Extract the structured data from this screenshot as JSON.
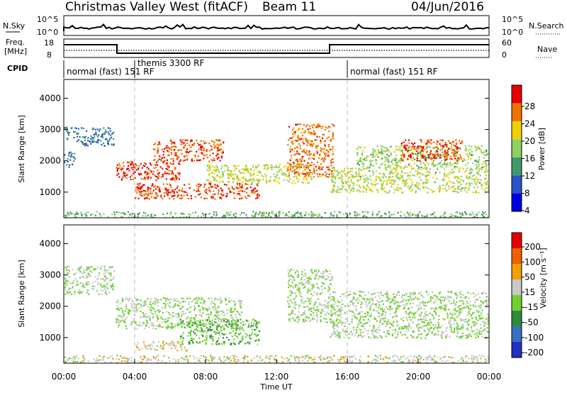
{
  "header": {
    "station": "Christmas Valley West (fitACF)",
    "beam": "Beam 11",
    "date": "04/Jun/2016"
  },
  "sky_panel": {
    "left_label": "N.Sky",
    "left_ticks": [
      "10^5",
      "10^0"
    ],
    "right_label": "N.Search",
    "right_ticks": [
      "10^5",
      "10^0"
    ]
  },
  "freq_panel": {
    "left_label_1": "Freq.",
    "left_label_2": "[MHz]",
    "left_ticks": [
      "18",
      "8"
    ],
    "right_label": "Nave",
    "right_ticks": [
      "60",
      "0"
    ]
  },
  "cpid": {
    "label": "CPID",
    "segments": [
      {
        "text": "normal (fast) 151 RF",
        "start_hour": 0
      },
      {
        "text": "themis 3300 RF",
        "start_hour": 4
      },
      {
        "text": "normal (fast) 151 RF",
        "start_hour": 16
      }
    ]
  },
  "power_panel": {
    "ylabel": "Slant Range [km]",
    "yticks": [
      "4000",
      "3000",
      "2000",
      "1000"
    ],
    "colorbar_label": "Power [dB]",
    "colorbar_ticks": [
      "28",
      "24",
      "20",
      "16",
      "12",
      "8",
      "4"
    ],
    "colors": [
      "#0000e0",
      "#2a55c8",
      "#3f9a6a",
      "#8fd060",
      "#f0d000",
      "#f07000",
      "#e80000"
    ]
  },
  "velocity_panel": {
    "ylabel": "Slant Range [km]",
    "yticks": [
      "4000",
      "3000",
      "2000",
      "1000"
    ],
    "colorbar_label": "Velocity [m s⁻¹]",
    "colorbar_ticks": [
      "200",
      "100",
      "50",
      "15",
      "-15",
      "-50",
      "-100",
      "-200"
    ],
    "colors": [
      "#2030c0",
      "#3a70c0",
      "#2f8a3a",
      "#70d030",
      "#c8c8c8",
      "#f0a000",
      "#f06000",
      "#e80000"
    ]
  },
  "xaxis": {
    "label": "Time UT",
    "ticks": [
      "00:00",
      "04:00",
      "08:00",
      "12:00",
      "16:00",
      "20:00",
      "00:00"
    ]
  },
  "chart_data": [
    {
      "type": "heatmap",
      "title": "Power [dB]",
      "xlabel": "",
      "ylabel": "Slant Range [km]",
      "xlim": [
        0,
        24
      ],
      "ylim": [
        180,
        4600
      ],
      "clim": [
        2,
        30
      ],
      "x_unit": "hours UT",
      "echo_regions": [
        {
          "t0": 0.0,
          "t1": 0.6,
          "r0": 1800,
          "r1": 2300,
          "value": 10
        },
        {
          "t0": 0.0,
          "t1": 0.7,
          "r0": 2700,
          "r1": 3100,
          "value": 12
        },
        {
          "t0": 0.7,
          "t1": 2.8,
          "r0": 2500,
          "r1": 3100,
          "value": 9
        },
        {
          "t0": 2.9,
          "t1": 6.5,
          "r0": 1400,
          "r1": 2000,
          "value": 27
        },
        {
          "t0": 4.0,
          "t1": 11.0,
          "r0": 800,
          "r1": 1300,
          "value": 26
        },
        {
          "t0": 5.0,
          "t1": 9.0,
          "r0": 2000,
          "r1": 2700,
          "value": 25
        },
        {
          "t0": 8.0,
          "t1": 14.0,
          "r0": 1300,
          "r1": 1900,
          "value": 18
        },
        {
          "t0": 12.6,
          "t1": 15.2,
          "r0": 1500,
          "r1": 3200,
          "value": 24
        },
        {
          "t0": 15.0,
          "t1": 24.0,
          "r0": 1000,
          "r1": 1800,
          "value": 17
        },
        {
          "t0": 16.5,
          "t1": 24.0,
          "r0": 1800,
          "r1": 2500,
          "value": 16
        },
        {
          "t0": 19.0,
          "t1": 22.5,
          "r0": 2000,
          "r1": 2700,
          "value": 26
        },
        {
          "t0": 0.0,
          "t1": 24.0,
          "r0": 200,
          "r1": 400,
          "value": 14
        }
      ]
    },
    {
      "type": "heatmap",
      "title": "Velocity [m s⁻¹]",
      "xlabel": "Time UT",
      "ylabel": "Slant Range [km]",
      "xlim": [
        0,
        24
      ],
      "ylim": [
        180,
        4600
      ],
      "clim": [
        -200,
        200
      ],
      "x_unit": "hours UT",
      "echo_regions": [
        {
          "t0": 0.0,
          "t1": 2.8,
          "r0": 2400,
          "r1": 3300,
          "value": 0
        },
        {
          "t0": 2.9,
          "t1": 10.0,
          "r0": 1300,
          "r1": 2300,
          "value": 0
        },
        {
          "t0": 4.0,
          "t1": 7.0,
          "r0": 600,
          "r1": 900,
          "value": 40
        },
        {
          "t0": 6.5,
          "t1": 11.0,
          "r0": 800,
          "r1": 1600,
          "value": -40
        },
        {
          "t0": 12.6,
          "t1": 15.2,
          "r0": 1500,
          "r1": 3200,
          "value": 0
        },
        {
          "t0": 15.0,
          "t1": 24.0,
          "r0": 1000,
          "r1": 2500,
          "value": 0
        },
        {
          "t0": 0.0,
          "t1": 24.0,
          "r0": 200,
          "r1": 450,
          "value": 25
        }
      ]
    }
  ]
}
